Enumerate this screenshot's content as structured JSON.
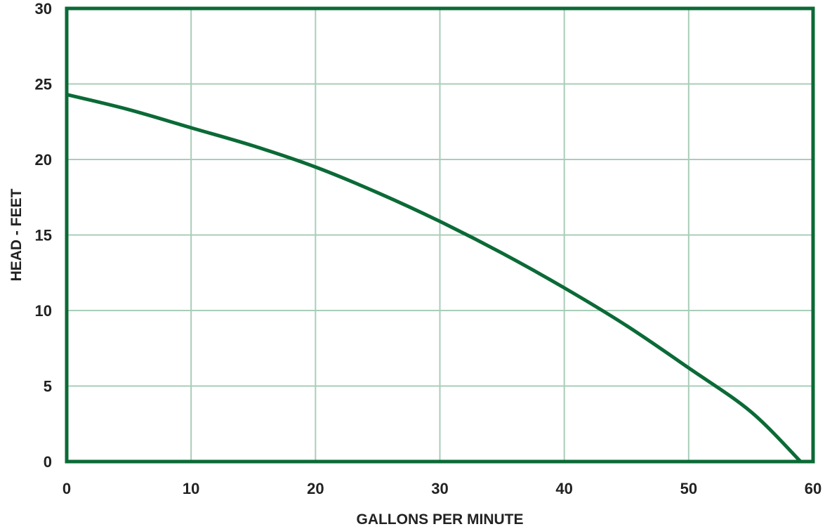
{
  "chart_data": {
    "type": "line",
    "title": "",
    "xlabel": "GALLONS PER MINUTE",
    "ylabel": "HEAD - FEET",
    "xlim": [
      0,
      60
    ],
    "ylim": [
      0,
      30
    ],
    "x_ticks": [
      "0",
      "10",
      "20",
      "30",
      "40",
      "50",
      "60"
    ],
    "y_ticks": [
      "0",
      "5",
      "10",
      "15",
      "20",
      "25",
      "30"
    ],
    "grid": true,
    "legend": "none",
    "colors": {
      "frame": "#0b6a36",
      "curve": "#0b6a36",
      "grid": "#a9cdb8",
      "text": "#222222"
    },
    "series": [
      {
        "x": [
          0,
          5,
          10,
          15,
          20,
          25,
          30,
          35,
          40,
          45,
          50,
          55,
          59
        ],
        "values": [
          24.3,
          23.3,
          22.1,
          20.9,
          19.5,
          17.8,
          15.9,
          13.8,
          11.5,
          9.0,
          6.2,
          3.3,
          0
        ]
      }
    ]
  }
}
